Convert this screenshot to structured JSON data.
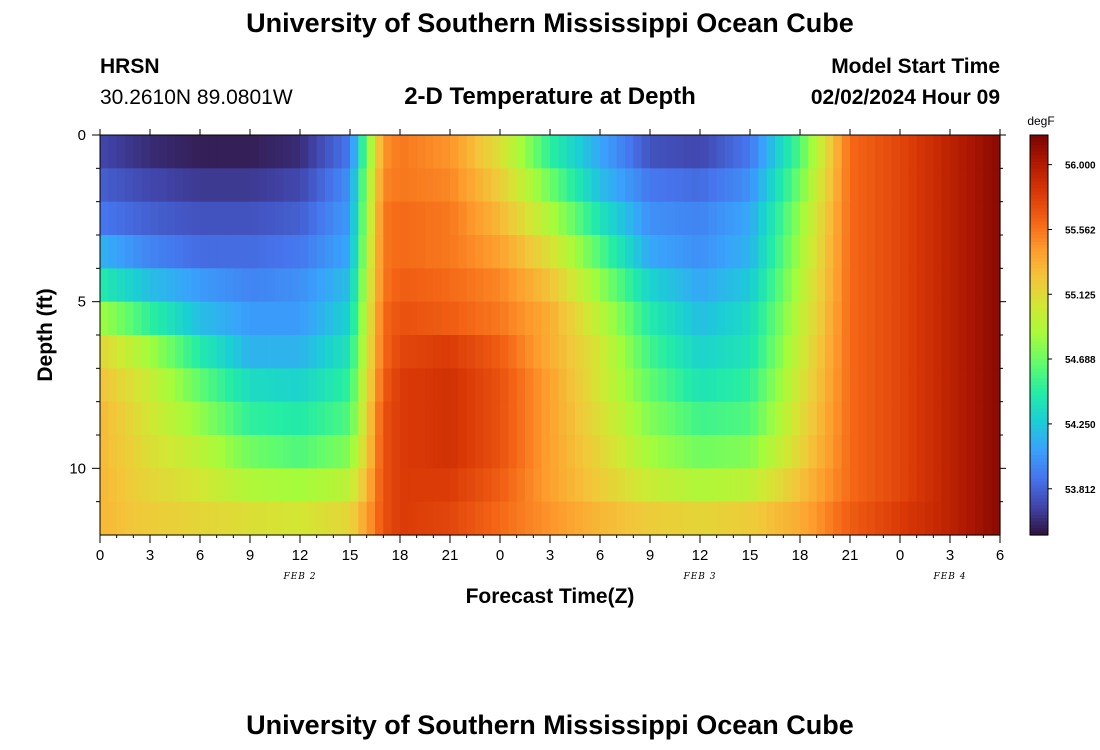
{
  "header": {
    "title": "University of Southern Mississippi Ocean Cube",
    "station": "HRSN",
    "coords": "30.2610N  89.0801W",
    "subtitle": "2-D Temperature at Depth",
    "model_label": "Model Start Time",
    "model_time": "02/02/2024 Hour 09"
  },
  "footer": {
    "title": "University of Southern Mississippi Ocean Cube"
  },
  "chart_data": {
    "type": "heatmap",
    "title": "2-D Temperature at Depth",
    "xlabel": "Forecast Time(Z)",
    "ylabel": "Depth (ft)",
    "x_tick_labels": [
      "0",
      "3",
      "6",
      "9",
      "12",
      "15",
      "18",
      "21",
      "0",
      "3",
      "6",
      "9",
      "12",
      "15",
      "18",
      "21",
      "0",
      "3",
      "6"
    ],
    "x_range_hours": [
      0,
      54
    ],
    "date_labels": [
      {
        "label": "FEB 2",
        "hour": 12
      },
      {
        "label": "FEB 3",
        "hour": 36
      },
      {
        "label": "FEB 4",
        "hour": 51
      }
    ],
    "y_tick_labels": [
      "0",
      "5",
      "10"
    ],
    "y_tick_values": [
      0,
      5,
      10
    ],
    "y_range_ft": [
      0,
      12
    ],
    "colorbar": {
      "units": "degF",
      "min": 53.5,
      "max": 56.2,
      "tick_labels": [
        "56.000",
        "55.562",
        "55.125",
        "54.688",
        "54.250",
        "53.812"
      ],
      "tick_values": [
        56.0,
        55.562,
        55.125,
        54.688,
        54.25,
        53.812
      ],
      "colors": [
        "#30123b",
        "#4145ab",
        "#4675ed",
        "#39a2fc",
        "#1bcfd4",
        "#24eca6",
        "#61fc6c",
        "#a4fc3b",
        "#d1e834",
        "#f3c63a",
        "#fe9b2d",
        "#f36315",
        "#d93806",
        "#b11901",
        "#7a0402"
      ]
    },
    "depth_levels_ft": [
      0,
      1,
      2,
      3,
      4,
      5,
      6,
      7,
      8,
      9,
      10,
      11
    ],
    "time_hours": [
      0,
      3,
      6,
      9,
      12,
      15,
      16,
      17,
      18,
      21,
      24,
      27,
      30,
      33,
      36,
      39,
      42,
      45,
      48,
      51,
      54
    ],
    "values_degF": [
      [
        53.7,
        53.6,
        53.55,
        53.55,
        53.6,
        53.9,
        54.7,
        55.45,
        55.55,
        55.45,
        55.1,
        54.5,
        54.1,
        53.75,
        53.7,
        53.9,
        54.6,
        55.6,
        55.75,
        55.95,
        56.15
      ],
      [
        53.8,
        53.7,
        53.65,
        53.65,
        53.7,
        54.0,
        54.8,
        55.5,
        55.55,
        55.5,
        55.2,
        54.7,
        54.2,
        53.9,
        53.85,
        54.0,
        54.7,
        55.6,
        55.75,
        55.95,
        56.15
      ],
      [
        53.9,
        53.8,
        53.75,
        53.75,
        53.8,
        54.05,
        54.85,
        55.55,
        55.6,
        55.55,
        55.3,
        54.9,
        54.4,
        54.0,
        53.95,
        54.1,
        54.8,
        55.6,
        55.75,
        55.95,
        56.15
      ],
      [
        54.15,
        53.95,
        53.85,
        53.85,
        53.9,
        54.1,
        54.9,
        55.55,
        55.6,
        55.55,
        55.4,
        55.1,
        54.6,
        54.1,
        54.0,
        54.15,
        54.85,
        55.6,
        55.75,
        55.95,
        56.15
      ],
      [
        54.45,
        54.2,
        54.05,
        53.95,
        54.0,
        54.2,
        54.95,
        55.55,
        55.65,
        55.6,
        55.5,
        55.25,
        54.8,
        54.3,
        54.1,
        54.25,
        54.9,
        55.6,
        55.75,
        55.95,
        56.15
      ],
      [
        54.85,
        54.5,
        54.2,
        54.05,
        54.05,
        54.3,
        55.0,
        55.6,
        55.7,
        55.65,
        55.55,
        55.35,
        54.95,
        54.45,
        54.2,
        54.35,
        54.95,
        55.6,
        55.75,
        55.95,
        56.15
      ],
      [
        55.15,
        54.85,
        54.45,
        54.15,
        54.15,
        54.4,
        55.05,
        55.6,
        55.75,
        55.8,
        55.65,
        55.35,
        55.05,
        54.55,
        54.3,
        54.4,
        55.0,
        55.6,
        55.75,
        55.95,
        56.15
      ],
      [
        55.25,
        55.0,
        54.65,
        54.35,
        54.3,
        54.5,
        55.1,
        55.65,
        55.8,
        55.85,
        55.7,
        55.4,
        55.05,
        54.65,
        54.4,
        54.5,
        55.05,
        55.6,
        55.75,
        55.95,
        56.15
      ],
      [
        55.3,
        55.05,
        54.8,
        54.5,
        54.45,
        54.6,
        55.15,
        55.7,
        55.8,
        55.85,
        55.7,
        55.4,
        55.1,
        54.75,
        54.55,
        54.6,
        55.1,
        55.6,
        55.75,
        55.95,
        56.15
      ],
      [
        55.3,
        55.1,
        54.95,
        54.7,
        54.6,
        54.75,
        55.2,
        55.7,
        55.8,
        55.85,
        55.7,
        55.4,
        55.15,
        54.85,
        54.7,
        54.75,
        55.15,
        55.6,
        55.75,
        55.95,
        56.15
      ],
      [
        55.3,
        55.15,
        55.05,
        54.9,
        54.85,
        54.95,
        55.3,
        55.7,
        55.8,
        55.8,
        55.65,
        55.4,
        55.2,
        55.0,
        54.9,
        54.95,
        55.25,
        55.6,
        55.75,
        55.95,
        56.15
      ],
      [
        55.3,
        55.2,
        55.15,
        55.1,
        55.05,
        55.15,
        55.4,
        55.7,
        55.8,
        55.75,
        55.6,
        55.45,
        55.3,
        55.2,
        55.15,
        55.2,
        55.35,
        55.65,
        55.8,
        55.95,
        56.15
      ]
    ]
  }
}
